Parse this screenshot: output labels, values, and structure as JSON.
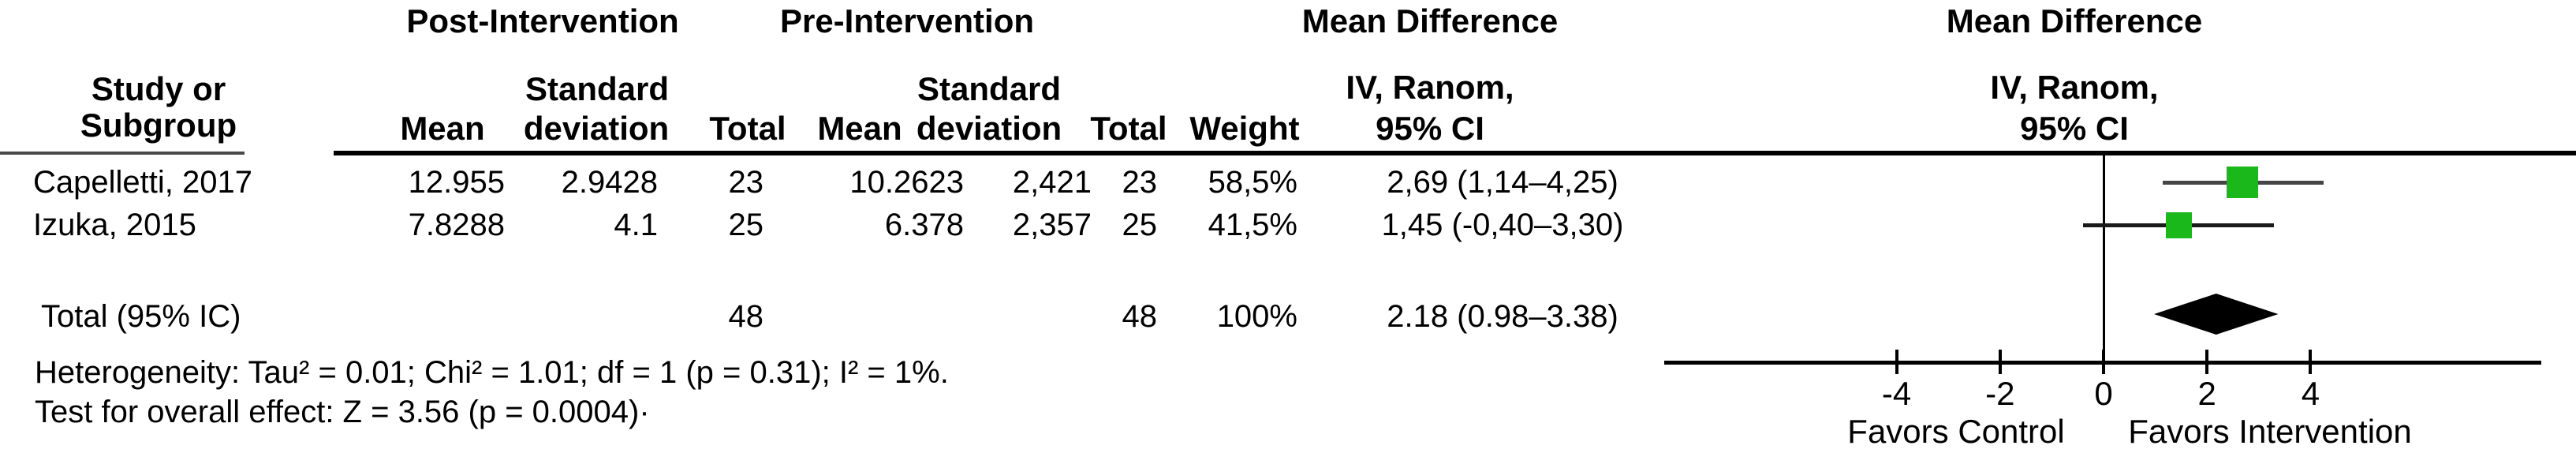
{
  "table": {
    "group_headers": {
      "post": "Post-Intervention",
      "pre": "Pre-Intervention",
      "md_left": "Mean Difference",
      "md_right": "Mean Difference"
    },
    "column_headers": {
      "study_line1": "Study or",
      "study_line2": "Subgroup",
      "mean_post": "Mean",
      "sd_post_line1": "Standard",
      "sd_post_line2": "deviation",
      "total_post": "Total",
      "mean_pre": "Mean",
      "sd_pre_line1": "Standard",
      "sd_pre_line2": "deviation",
      "total_pre": "Total",
      "weight": "Weight",
      "iv_line1": "IV, Ranom,",
      "iv_line2": "95% CI",
      "iv_right_line1": "IV, Ranom,",
      "iv_right_line2": "95% CI"
    },
    "rows": [
      {
        "study": "Capelletti, 2017",
        "mean_post": "12.955",
        "sd_post": "2.9428",
        "total_post": "23",
        "mean_pre": "10.2623",
        "sd_pre": "2,421",
        "total_pre": "23",
        "weight": "58,5%",
        "md_ci": "2,69 (1,14–4,25)"
      },
      {
        "study": "Izuka, 2015",
        "mean_post": "7.8288",
        "sd_post": "4.1",
        "total_post": "25",
        "mean_pre": "6.378",
        "sd_pre": "2,357",
        "total_pre": "25",
        "weight": "41,5%",
        "md_ci": "1,45 (-0,40–3,30)"
      }
    ],
    "total_row": {
      "label": "Total (95% IC)",
      "total_post": "48",
      "total_pre": "48",
      "weight": "100%",
      "md_ci": "2.18 (0.98–3.38)"
    },
    "footnotes": {
      "heterogeneity": "Heterogeneity: Tau² = 0.01; Chi² = 1.01; df = 1 (p = 0.31); I² = 1%.",
      "overall_effect": "Test for overall effect: Z = 3.56 (p = 0.0004)·"
    }
  },
  "chart_data": {
    "type": "scatter",
    "subtype": "forest-plot",
    "title": "Mean Difference, IV, Ranom, 95% CI",
    "x_axis": {
      "ticks": [
        -4,
        -2,
        0,
        2,
        4
      ],
      "range": [
        -8.5,
        8.5
      ],
      "zero_line": 0
    },
    "studies": [
      {
        "name": "Capelletti, 2017",
        "md": 2.69,
        "ci_low": 1.14,
        "ci_high": 4.25,
        "weight_pct": 58.5,
        "line_color": "#454545"
      },
      {
        "name": "Izuka, 2015",
        "md": 1.45,
        "ci_low": -0.4,
        "ci_high": 3.3,
        "weight_pct": 41.5,
        "line_color": "#1a1a1a"
      }
    ],
    "pooled": {
      "label": "Total (95% IC)",
      "md": 2.18,
      "ci_low": 0.98,
      "ci_high": 3.38,
      "weight_pct": 100
    },
    "labels": {
      "left": "Favors Control",
      "right": "Favors Intervention"
    },
    "marker_color": "#1ab81a",
    "diamond_color": "#000000",
    "axis_color": "#000000",
    "legend_position": "none",
    "grid": false
  }
}
